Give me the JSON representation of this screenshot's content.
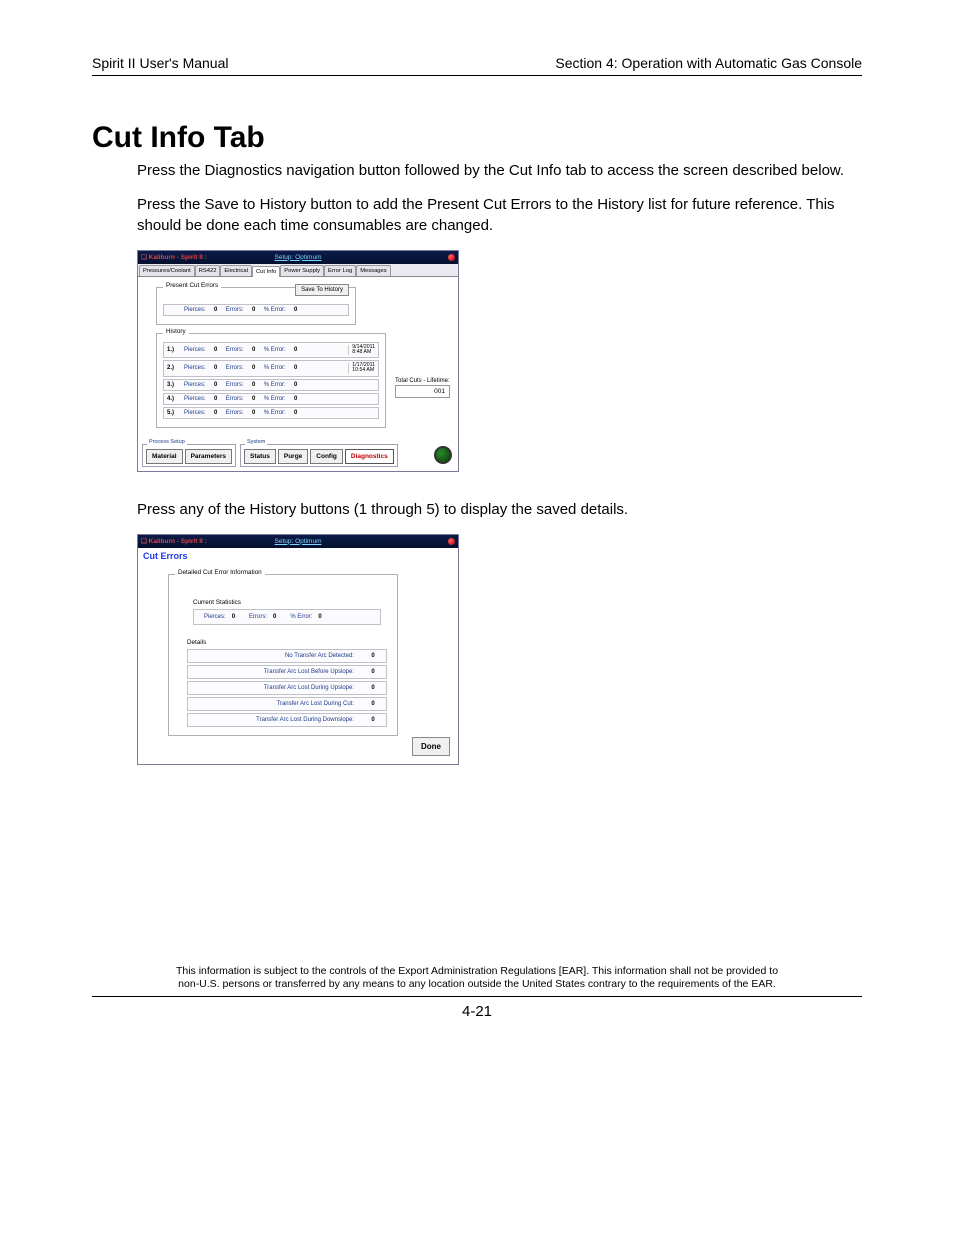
{
  "header": {
    "left": "Spirit II User's Manual",
    "right": "Section 4: Operation with Automatic Gas Console"
  },
  "title": "Cut Info Tab",
  "paragraphs": {
    "p1": "Press the Diagnostics navigation button followed by the Cut Info tab to access the screen described below.",
    "p2": "Press the Save to History button to add the Present Cut Errors to the History list for future reference.  This should be done each time consumables are changed.",
    "p3": "Press any of the History buttons (1 through 5) to display the saved details."
  },
  "screenshot1": {
    "titlebar": {
      "left": "❏ Kaliburn - Spirit II :",
      "center": "Setup: Optimum"
    },
    "tabs": {
      "t1": "Pressures/Coolant",
      "t2": "RS422",
      "t3": "Electrical",
      "t4": "Cut Info",
      "t5": "Power Supply",
      "t6": "Error Log",
      "t7": "Messages"
    },
    "present": {
      "legend": "Present Cut Errors",
      "save": "Save To History",
      "row": {
        "pierces_l": "Pierces:",
        "pierces_v": "0",
        "errors_l": "Errors:",
        "errors_v": "0",
        "pct_l": "% Error:",
        "pct_v": "0"
      }
    },
    "history": {
      "legend": "History",
      "rows": [
        {
          "idx": "1.)",
          "pierces_l": "Pierces:",
          "pierces_v": "0",
          "errors_l": "Errors:",
          "errors_v": "0",
          "pct_l": "% Error:",
          "pct_v": "0",
          "date": "9/14/2011\n8:48 AM"
        },
        {
          "idx": "2.)",
          "pierces_l": "Pierces:",
          "pierces_v": "0",
          "errors_l": "Errors:",
          "errors_v": "0",
          "pct_l": "% Error:",
          "pct_v": "0",
          "date": "1/17/2011\n10:54 AM"
        },
        {
          "idx": "3.)",
          "pierces_l": "Pierces:",
          "pierces_v": "0",
          "errors_l": "Errors:",
          "errors_v": "0",
          "pct_l": "% Error:",
          "pct_v": "0",
          "date": ""
        },
        {
          "idx": "4.)",
          "pierces_l": "Pierces:",
          "pierces_v": "0",
          "errors_l": "Errors:",
          "errors_v": "0",
          "pct_l": "% Error:",
          "pct_v": "0",
          "date": ""
        },
        {
          "idx": "5.)",
          "pierces_l": "Pierces:",
          "pierces_v": "0",
          "errors_l": "Errors:",
          "errors_v": "0",
          "pct_l": "% Error:",
          "pct_v": "0",
          "date": ""
        }
      ],
      "total_label": "Total Cuts - Lifetime:",
      "total_value": "001"
    },
    "nav": {
      "group1_label": "Process Setup",
      "group2_label": "System",
      "material": "Material",
      "parameters": "Parameters",
      "status": "Status",
      "purge": "Purge",
      "config": "Config",
      "diagnostics": "Diagnostics"
    }
  },
  "screenshot2": {
    "titlebar": {
      "left": "❏ Kaliburn - Spirit II :",
      "center": "Setup: Optimum"
    },
    "subtitle": "Cut Errors",
    "box_legend": "Detailed Cut Error Information",
    "stats_legend": "Current Statistics",
    "stats": {
      "pierces_l": "Pierces:",
      "pierces_v": "0",
      "errors_l": "Errors:",
      "errors_v": "0",
      "pct_l": "% Error:",
      "pct_v": "0"
    },
    "details_legend": "Details",
    "details": [
      {
        "label": "No Transfer Arc Detected:",
        "value": "0"
      },
      {
        "label": "Transfer Arc Lost Before Upslope:",
        "value": "0"
      },
      {
        "label": "Transfer Arc Lost During Upslope:",
        "value": "0"
      },
      {
        "label": "Transfer Arc Lost During Cut:",
        "value": "0"
      },
      {
        "label": "Transfer Arc Lost During Downslope:",
        "value": "0"
      }
    ],
    "done": "Done"
  },
  "footer": {
    "line1": "This information is subject to the controls of the Export Administration Regulations [EAR].  This information shall not be provided to",
    "line2": "non-U.S. persons or transferred by any means to any location outside the United States contrary to the requirements of the EAR."
  },
  "pagenum": "4-21"
}
